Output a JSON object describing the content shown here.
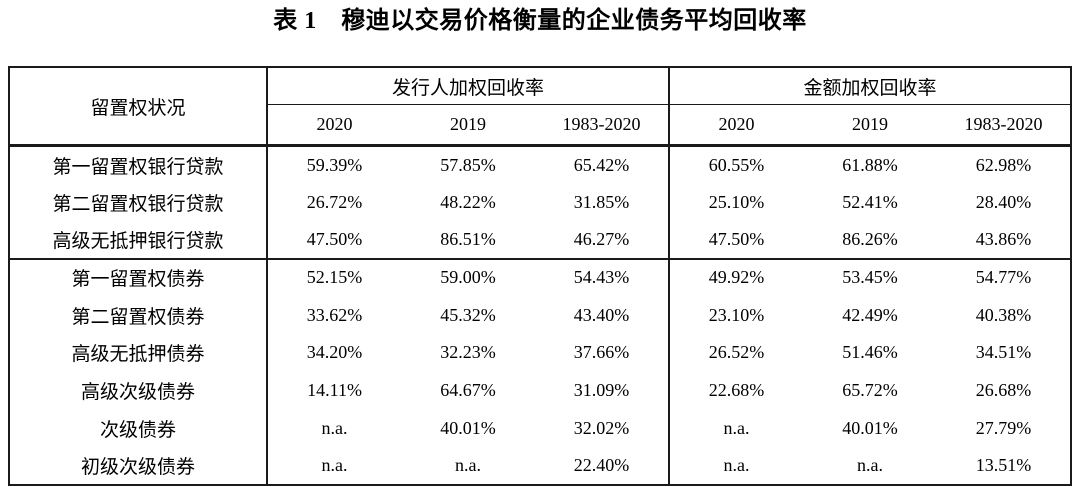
{
  "title": "表 1　穆迪以交易价格衡量的企业债务平均回收率",
  "colors": {
    "background": "#ffffff",
    "text": "#000000",
    "border": "#1a1a1a"
  },
  "table": {
    "corner_header": "留置权状况",
    "groups": [
      {
        "label": "发行人加权回收率",
        "columns": [
          "2020",
          "2019",
          "1983-2020"
        ]
      },
      {
        "label": "金额加权回收率",
        "columns": [
          "2020",
          "2019",
          "1983-2020"
        ]
      }
    ],
    "sections": [
      {
        "name": "bank-loans",
        "rows": [
          {
            "label": "第一留置权银行贷款",
            "values": [
              "59.39%",
              "57.85%",
              "65.42%",
              "60.55%",
              "61.88%",
              "62.98%"
            ]
          },
          {
            "label": "第二留置权银行贷款",
            "values": [
              "26.72%",
              "48.22%",
              "31.85%",
              "25.10%",
              "52.41%",
              "28.40%"
            ]
          },
          {
            "label": "高级无抵押银行贷款",
            "values": [
              "47.50%",
              "86.51%",
              "46.27%",
              "47.50%",
              "86.26%",
              "43.86%"
            ]
          }
        ]
      },
      {
        "name": "bonds",
        "rows": [
          {
            "label": "第一留置权债券",
            "values": [
              "52.15%",
              "59.00%",
              "54.43%",
              "49.92%",
              "53.45%",
              "54.77%"
            ]
          },
          {
            "label": "第二留置权债券",
            "values": [
              "33.62%",
              "45.32%",
              "43.40%",
              "23.10%",
              "42.49%",
              "40.38%"
            ]
          },
          {
            "label": "高级无抵押债券",
            "values": [
              "34.20%",
              "32.23%",
              "37.66%",
              "26.52%",
              "51.46%",
              "34.51%"
            ]
          },
          {
            "label": "高级次级债券",
            "values": [
              "14.11%",
              "64.67%",
              "31.09%",
              "22.68%",
              "65.72%",
              "26.68%"
            ]
          },
          {
            "label": "次级债券",
            "values": [
              "n.a.",
              "40.01%",
              "32.02%",
              "n.a.",
              "40.01%",
              "27.79%"
            ]
          },
          {
            "label": "初级次级债券",
            "values": [
              "n.a.",
              "n.a.",
              "22.40%",
              "n.a.",
              "n.a.",
              "13.51%"
            ]
          }
        ]
      }
    ]
  }
}
